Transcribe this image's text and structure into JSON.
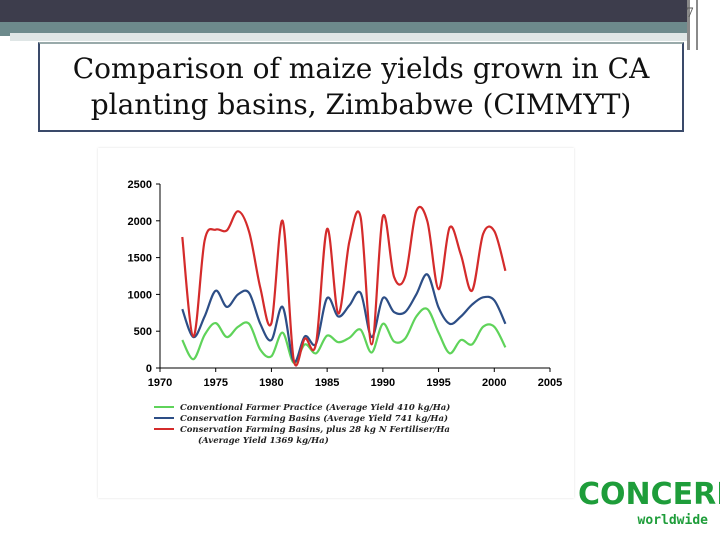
{
  "slide": {
    "page_number": "7",
    "title": "Comparison of maize yields grown in CA planting basins, Zimbabwe (CIMMYT)"
  },
  "logo": {
    "main": "CONCERN",
    "sub": "worldwide"
  },
  "colors": {
    "green": "#5fd35a",
    "blue": "#2d4e86",
    "red": "#d42b2b"
  },
  "chart_data": {
    "type": "line",
    "title": "",
    "xlabel": "",
    "ylabel": "",
    "xlim": [
      1970,
      2005
    ],
    "ylim": [
      0,
      2500
    ],
    "x_ticks": [
      1970,
      1975,
      1980,
      1985,
      1990,
      1995,
      2000,
      2005
    ],
    "y_ticks": [
      0,
      500,
      1000,
      1500,
      2000,
      2500
    ],
    "grid": false,
    "legend_position": "bottom",
    "series": [
      {
        "name": "Conventional Farmer Practice (Average Yield 410 kg/Ha)",
        "color": "#5fd35a",
        "x": [
          1972,
          1973,
          1974,
          1975,
          1976,
          1977,
          1978,
          1979,
          1980,
          1981,
          1982,
          1983,
          1984,
          1985,
          1986,
          1987,
          1988,
          1989,
          1990,
          1991,
          1992,
          1993,
          1994,
          1995,
          1996,
          1997,
          1998,
          1999,
          2000,
          2001
        ],
        "y": [
          380,
          120,
          450,
          610,
          420,
          560,
          600,
          250,
          160,
          480,
          70,
          320,
          200,
          440,
          350,
          410,
          520,
          210,
          600,
          360,
          400,
          700,
          800,
          480,
          200,
          380,
          320,
          560,
          560,
          280
        ]
      },
      {
        "name": "Conservation Farming Basins (Average Yield 741 kg/Ha)",
        "color": "#2d4e86",
        "x": [
          1972,
          1973,
          1974,
          1975,
          1976,
          1977,
          1978,
          1979,
          1980,
          1981,
          1982,
          1983,
          1984,
          1985,
          1986,
          1987,
          1988,
          1989,
          1990,
          1991,
          1992,
          1993,
          1994,
          1995,
          1996,
          1997,
          1998,
          1999,
          2000,
          2001
        ],
        "y": [
          800,
          420,
          700,
          1050,
          830,
          1000,
          1020,
          600,
          380,
          830,
          90,
          430,
          330,
          950,
          700,
          850,
          1020,
          420,
          950,
          760,
          760,
          1000,
          1270,
          820,
          600,
          700,
          860,
          960,
          920,
          600
        ]
      },
      {
        "name": "Conservation Farming Basins, plus 28 kg N Fertiliser/Ha (Average Yield 1369 kg/Ha)",
        "color": "#d42b2b",
        "x": [
          1972,
          1973,
          1974,
          1975,
          1976,
          1977,
          1978,
          1979,
          1980,
          1981,
          1982,
          1983,
          1984,
          1985,
          1986,
          1987,
          1988,
          1989,
          1990,
          1991,
          1992,
          1993,
          1994,
          1995,
          1996,
          1997,
          1998,
          1999,
          2000,
          2001
        ],
        "y": [
          1780,
          430,
          1730,
          1880,
          1870,
          2130,
          1850,
          1090,
          610,
          2000,
          110,
          400,
          330,
          1890,
          740,
          1720,
          2050,
          320,
          2060,
          1240,
          1240,
          2130,
          1990,
          1070,
          1910,
          1540,
          1050,
          1820,
          1860,
          1320
        ]
      }
    ],
    "legend": [
      "Conventional Farmer Practice (Average Yield 410 kg/Ha)",
      "Conservation Farming Basins (Average Yield 741 kg/Ha)",
      "Conservation Farming Basins, plus 28 kg N Fertiliser/Ha",
      "(Average Yield 1369 kg/Ha)"
    ]
  }
}
